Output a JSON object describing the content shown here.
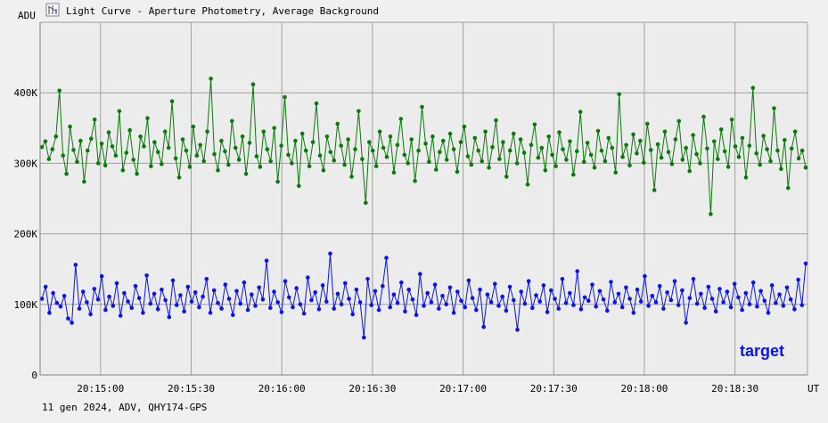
{
  "window": {
    "title": "Light Curve - Aperture Photometry, Average Background",
    "footer": "11 gen 2024, ADV, QHY174-GPS"
  },
  "chart_data": {
    "type": "line",
    "title": "Light Curve - Aperture Photometry, Average Background",
    "ylabel": "ADU",
    "xlabel": "UT",
    "ylim": [
      0,
      500000
    ],
    "xlim": [
      "20:14:40",
      "20:18:54"
    ],
    "y_ticks": [
      {
        "value": 0,
        "label": "0"
      },
      {
        "value": 100000,
        "label": "100K"
      },
      {
        "value": 200000,
        "label": "200K"
      },
      {
        "value": 300000,
        "label": "300K"
      },
      {
        "value": 400000,
        "label": "400K"
      }
    ],
    "x_ticks": [
      "20:15:00",
      "20:15:30",
      "20:16:00",
      "20:16:30",
      "20:17:00",
      "20:17:30",
      "20:18:00",
      "20:18:30"
    ],
    "grid": true,
    "annotations": [
      "target"
    ],
    "series": [
      {
        "color": "#0a7a0a",
        "values": [
          323000,
          331000,
          306000,
          320000,
          338000,
          403000,
          311000,
          285000,
          352000,
          319000,
          302000,
          332000,
          274000,
          318000,
          335000,
          362000,
          300000,
          328000,
          297000,
          344000,
          324000,
          311000,
          374000,
          290000,
          315000,
          347000,
          305000,
          285000,
          338000,
          324000,
          364000,
          296000,
          330000,
          316000,
          299000,
          345000,
          322000,
          388000,
          307000,
          280000,
          334000,
          318000,
          295000,
          352000,
          311000,
          326000,
          303000,
          345000,
          420000,
          313000,
          290000,
          332000,
          317000,
          298000,
          360000,
          322000,
          305000,
          338000,
          285000,
          329000,
          412000,
          310000,
          295000,
          345000,
          320000,
          303000,
          350000,
          274000,
          325000,
          394000,
          312000,
          300000,
          332000,
          268000,
          342000,
          318000,
          296000,
          330000,
          385000,
          311000,
          290000,
          338000,
          316000,
          304000,
          356000,
          325000,
          298000,
          334000,
          281000,
          320000,
          374000,
          306000,
          244000,
          330000,
          318000,
          296000,
          345000,
          322000,
          309000,
          338000,
          287000,
          326000,
          363000,
          312000,
          300000,
          334000,
          275000,
          318000,
          380000,
          328000,
          302000,
          338000,
          291000,
          316000,
          332000,
          305000,
          342000,
          320000,
          288000,
          330000,
          352000,
          310000,
          298000,
          336000,
          318000,
          303000,
          345000,
          294000,
          323000,
          361000,
          306000,
          330000,
          281000,
          318000,
          342000,
          300000,
          334000,
          315000,
          270000,
          326000,
          355000,
          308000,
          322000,
          290000,
          338000,
          312000,
          296000,
          344000,
          320000,
          305000,
          331000,
          284000,
          317000,
          373000,
          302000,
          329000,
          312000,
          294000,
          346000,
          318000,
          303000,
          336000,
          322000,
          287000,
          398000,
          309000,
          326000,
          297000,
          341000,
          314000,
          332000,
          301000,
          356000,
          319000,
          262000,
          327000,
          308000,
          345000,
          316000,
          299000,
          334000,
          360000,
          305000,
          322000,
          289000,
          340000,
          313000,
          300000,
          366000,
          321000,
          228000,
          331000,
          306000,
          348000,
          317000,
          295000,
          362000,
          324000,
          309000,
          336000,
          280000,
          325000,
          407000,
          314000,
          298000,
          339000,
          320000,
          303000,
          378000,
          318000,
          292000,
          333000,
          265000,
          321000,
          345000,
          307000,
          318000,
          294000
        ]
      },
      {
        "color": "#0a14f0",
        "values": [
          108000,
          125000,
          88000,
          116000,
          102000,
          97000,
          112000,
          80000,
          74000,
          156000,
          94000,
          118000,
          103000,
          86000,
          122000,
          107000,
          140000,
          92000,
          111000,
          98000,
          130000,
          84000,
          116000,
          104000,
          95000,
          126000,
          109000,
          88000,
          141000,
          101000,
          115000,
          93000,
          121000,
          106000,
          82000,
          134000,
          99000,
          113000,
          90000,
          125000,
          104000,
          117000,
          96000,
          111000,
          136000,
          88000,
          120000,
          102000,
          94000,
          128000,
          108000,
          85000,
          119000,
          101000,
          131000,
          92000,
          114000,
          98000,
          124000,
          107000,
          162000,
          95000,
          118000,
          103000,
          89000,
          133000,
          110000,
          96000,
          123000,
          100000,
          87000,
          138000,
          106000,
          117000,
          93000,
          127000,
          104000,
          172000,
          94000,
          115000,
          100000,
          130000,
          108000,
          86000,
          121000,
          103000,
          53000,
          136000,
          99000,
          119000,
          92000,
          126000,
          166000,
          96000,
          114000,
          102000,
          131000,
          90000,
          121000,
          107000,
          85000,
          143000,
          98000,
          116000,
          103000,
          128000,
          94000,
          112000,
          100000,
          124000,
          88000,
          118000,
          105000,
          96000,
          134000,
          109000,
          92000,
          121000,
          68000,
          114000,
          103000,
          129000,
          98000,
          111000,
          91000,
          125000,
          106000,
          64000,
          118000,
          101000,
          133000,
          95000,
          113000,
          104000,
          127000,
          89000,
          120000,
          108000,
          94000,
          136000,
          102000,
          116000,
          99000,
          147000,
          93000,
          110000,
          105000,
          128000,
          97000,
          119000,
          107000,
          91000,
          132000,
          103000,
          115000,
          96000,
          124000,
          108000,
          88000,
          121000,
          104000,
          140000,
          98000,
          112000,
          103000,
          126000,
          94000,
          117000,
          106000,
          133000,
          99000,
          120000,
          74000,
          109000,
          136000,
          101000,
          115000,
          95000,
          125000,
          108000,
          90000,
          122000,
          103000,
          118000,
          96000,
          129000,
          110000,
          92000,
          116000,
          100000,
          131000,
          97000,
          119000,
          105000,
          88000,
          127000,
          102000,
          114000,
          98000,
          124000,
          107000,
          93000,
          135000,
          99000,
          158000
        ]
      }
    ]
  }
}
